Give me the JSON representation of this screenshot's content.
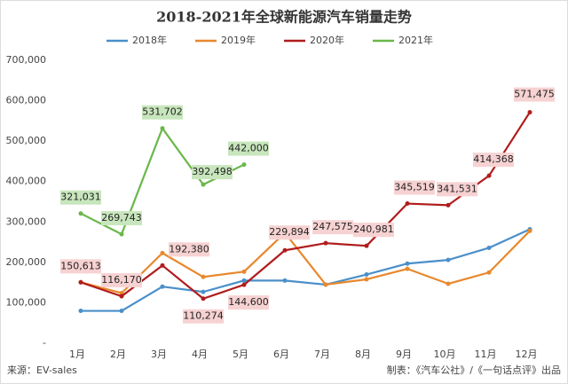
{
  "chart_data": {
    "type": "line",
    "title": "2018-2021年全球新能源汽车销量走势",
    "categories": [
      "1月",
      "2月",
      "3月",
      "4月",
      "5月",
      "6月",
      "7月",
      "8月",
      "9月",
      "10月",
      "11月",
      "12月"
    ],
    "series": [
      {
        "name": "2018年",
        "color": "#4a8fc9",
        "values": [
          80000,
          80000,
          140000,
          127000,
          155000,
          155000,
          145000,
          170000,
          197000,
          206000,
          236000,
          282000
        ]
      },
      {
        "name": "2019年",
        "color": "#e8882c",
        "values": [
          151000,
          124000,
          223000,
          164000,
          177000,
          273000,
          145000,
          158000,
          184000,
          147000,
          175000,
          278000
        ]
      },
      {
        "name": "2020年",
        "color": "#b01c1c",
        "values": [
          150613,
          116170,
          192380,
          110274,
          144600,
          229894,
          247575,
          240981,
          345519,
          341531,
          414368,
          571475
        ],
        "value_labels": [
          "150,613",
          "116,170",
          "192,380",
          "110,274",
          "144,600",
          "229,894",
          "247,575",
          "240,981",
          "345,519",
          "341,531",
          "414,368",
          "571,475"
        ]
      },
      {
        "name": "2021年",
        "color": "#6ab74a",
        "values": [
          321031,
          269743,
          531702,
          392498,
          442000,
          null,
          null,
          null,
          null,
          null,
          null,
          null
        ],
        "value_labels": [
          "321,031",
          "269,743",
          "531,702",
          "392,498",
          "442,000",
          null,
          null,
          null,
          null,
          null,
          null,
          null
        ]
      }
    ],
    "ylim": [
      0,
      700000
    ],
    "yticks": [
      {
        "value": 0,
        "label": "-"
      },
      {
        "value": 100000,
        "label": "100,000"
      },
      {
        "value": 200000,
        "label": "200,000"
      },
      {
        "value": 300000,
        "label": "300,000"
      },
      {
        "value": 400000,
        "label": "400,000"
      },
      {
        "value": 500000,
        "label": "500,000"
      },
      {
        "value": 600000,
        "label": "600,000"
      },
      {
        "value": 700000,
        "label": "700,000"
      }
    ],
    "legend": "top",
    "source": "来源：EV-sales",
    "credit": "制表：《汽车公社》/《一句话点评》出品"
  }
}
